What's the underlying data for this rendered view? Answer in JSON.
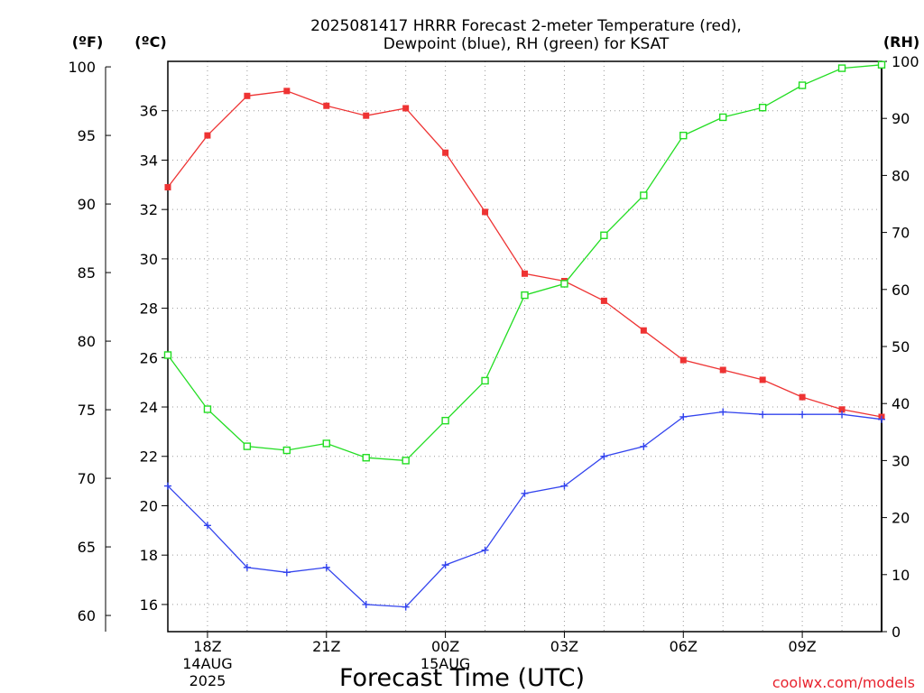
{
  "chart_data": {
    "type": "line",
    "title_line1": "2025081417 HRRR Forecast 2-meter Temperature (red),",
    "title_line2": "Dewpoint (blue), RH (green) for KSAT",
    "xlabel": "Forecast Time (UTC)",
    "credit": "coolwx.com/models",
    "unit_labels": {
      "fahrenheit": "(ºF)",
      "celsius": "(ºC)",
      "rh": "(RH)"
    },
    "x_hours": [
      17,
      18,
      19,
      20,
      21,
      22,
      23,
      24,
      25,
      26,
      27,
      28,
      29,
      30,
      31,
      32,
      33,
      34,
      35
    ],
    "x_ticks": [
      {
        "hour": 18,
        "lines": [
          "18Z",
          "14AUG",
          "2025"
        ]
      },
      {
        "hour": 21,
        "lines": [
          "21Z"
        ]
      },
      {
        "hour": 24,
        "lines": [
          "00Z",
          "15AUG"
        ]
      },
      {
        "hour": 27,
        "lines": [
          "03Z"
        ]
      },
      {
        "hour": 30,
        "lines": [
          "06Z"
        ]
      },
      {
        "hour": 33,
        "lines": [
          "09Z"
        ]
      }
    ],
    "xlim": [
      17,
      35
    ],
    "ylim_celsius": [
      14.9,
      38.0
    ],
    "ylim_rh": [
      0,
      100
    ],
    "celsius_ticks": [
      16,
      18,
      20,
      22,
      24,
      26,
      28,
      30,
      32,
      34,
      36
    ],
    "fahrenheit_ticks": [
      60,
      65,
      70,
      75,
      80,
      85,
      90,
      95,
      100
    ],
    "rh_ticks": [
      0,
      10,
      20,
      30,
      40,
      50,
      60,
      70,
      80,
      90,
      100
    ],
    "series": [
      {
        "key": "temperature",
        "axis": "celsius",
        "color": "#ee3333",
        "marker": "filled-square",
        "values": [
          32.9,
          35.0,
          36.6,
          36.8,
          36.2,
          35.8,
          36.1,
          34.3,
          31.9,
          29.4,
          29.1,
          28.3,
          27.1,
          25.9,
          25.5,
          25.1,
          24.4,
          23.9,
          23.6
        ]
      },
      {
        "key": "dewpoint",
        "axis": "celsius",
        "color": "#3344ee",
        "marker": "plus",
        "values": [
          20.8,
          19.2,
          17.5,
          17.3,
          17.5,
          16.0,
          15.9,
          17.6,
          18.2,
          20.5,
          20.8,
          22.0,
          22.4,
          23.6,
          23.8,
          23.7,
          23.7,
          23.7,
          23.5
        ]
      },
      {
        "key": "rh",
        "axis": "rh",
        "color": "#22dd22",
        "marker": "open-square",
        "values": [
          48.5,
          39.0,
          32.5,
          31.8,
          33.0,
          30.5,
          30.0,
          37.0,
          44.0,
          59.0,
          61.0,
          69.5,
          76.5,
          87.0,
          90.2,
          91.9,
          95.8,
          98.8,
          99.4
        ]
      }
    ]
  }
}
